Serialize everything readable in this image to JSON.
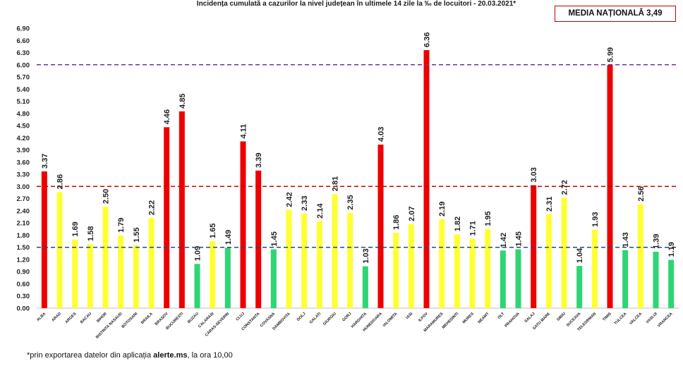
{
  "chart_data": {
    "type": "bar",
    "title": "Incidența cumulată a cazurilor la nivel județean în ultimele 14 zile la ‰ de locuitori - 20.03.2021*",
    "media_label": "MEDIA NAȚIONALĂ 3,49",
    "footnote_prefix": "*prin exportarea datelor din aplicația ",
    "footnote_bold": "alerte.ms",
    "footnote_suffix": ", la ora 10,00",
    "ylim": [
      0,
      6.9
    ],
    "yticks": [
      "0.00",
      "0.30",
      "0.60",
      "0.90",
      "1.20",
      "1.50",
      "1.80",
      "2.10",
      "2.40",
      "2.70",
      "3.00",
      "3.30",
      "3.60",
      "3.90",
      "4.20",
      "4.50",
      "4.80",
      "5.10",
      "5.40",
      "5.70",
      "6.00",
      "6.30",
      "6.60",
      "6.90"
    ],
    "categories": [
      "ALBA",
      "ARAD",
      "ARGES",
      "BACAU",
      "BIHOR",
      "BISTRITA NASAUD",
      "BOTOSANI",
      "BRAILA",
      "BRASOV",
      "BUCURESTI",
      "BUZAU",
      "CALARASI",
      "CARAS-SEVERIN",
      "CLUJ",
      "CONSTANTA",
      "COVASNA",
      "DAMBOVITA",
      "DOLJ",
      "GALATI",
      "GIURGIU",
      "GORJ",
      "HARGHITA",
      "HUNEDOARA",
      "IALOMITA",
      "IASI",
      "ILFOV",
      "MARAMURES",
      "MEHEDINTI",
      "MURES",
      "NEAMT",
      "OLT",
      "PRAHOVA",
      "SALAJ",
      "SATU MARE",
      "SIBIU",
      "SUCEAVA",
      "TELEORMAN",
      "TIMIS",
      "TULCEA",
      "VALCEA",
      "VASLUI",
      "VRANCEA"
    ],
    "values": [
      3.37,
      2.86,
      1.69,
      1.58,
      2.5,
      1.79,
      1.55,
      2.22,
      4.46,
      4.85,
      1.09,
      1.65,
      1.49,
      4.11,
      3.39,
      1.45,
      2.42,
      2.33,
      2.14,
      2.81,
      2.35,
      1.03,
      4.03,
      1.86,
      2.07,
      6.36,
      2.19,
      1.82,
      1.71,
      1.95,
      1.42,
      1.45,
      3.03,
      2.31,
      2.72,
      1.04,
      1.93,
      5.99,
      1.43,
      2.56,
      1.39,
      1.19
    ],
    "value_labels": [
      "3.37",
      "2.86",
      "1.69",
      "1.58",
      "2.50",
      "1.79",
      "1.55",
      "2.22",
      "4.46",
      "4.85",
      "1.09",
      "1.65",
      "1.49",
      "4.11",
      "3.39",
      "1.45",
      "2.42",
      "2.33",
      "2.14",
      "2.81",
      "2.35",
      "1.03",
      "4.03",
      "1.86",
      "2.07",
      "6.36",
      "2.19",
      "1.82",
      "1.71",
      "1.95",
      "1.42",
      "1.45",
      "3.03",
      "2.31",
      "2.72",
      "1.04",
      "1.93",
      "5.99",
      "1.43",
      "2.56",
      "1.39",
      "1.19"
    ],
    "thresholds": [
      {
        "value": 6.0,
        "color": "#7030a0"
      },
      {
        "value": 3.0,
        "color": "#c00000"
      },
      {
        "value": 1.5,
        "color": "#1f4e79"
      }
    ],
    "colors": {
      "red": "#ee0000",
      "yellow": "#ffff33",
      "green": "#2ed573"
    }
  }
}
